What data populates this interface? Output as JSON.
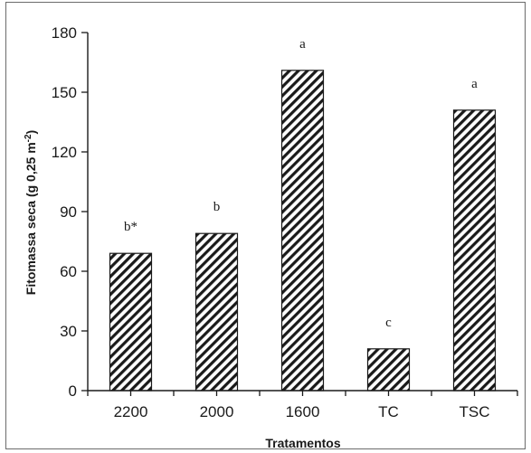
{
  "chart_data": {
    "type": "bar",
    "categories": [
      "2200",
      "2000",
      "1600",
      "TC",
      "TSC"
    ],
    "values": [
      69,
      79,
      161,
      21,
      141
    ],
    "letters": [
      "b*",
      "b",
      "a",
      "c",
      "a"
    ],
    "xlabel": "Tratamentos",
    "ylabel": "Fitomassa seca (g 0,25 m",
    "ylabel_sup": "-2",
    "ylabel_end": ")",
    "ylim": [
      0,
      180
    ],
    "yticks": [
      0,
      30,
      60,
      90,
      120,
      150,
      180
    ],
    "bar_fill": "hatched-diagonal",
    "grid": false
  },
  "colors": {
    "ink": "#1a1a1a",
    "frame": "#6b6b6b",
    "background": "#ffffff"
  }
}
